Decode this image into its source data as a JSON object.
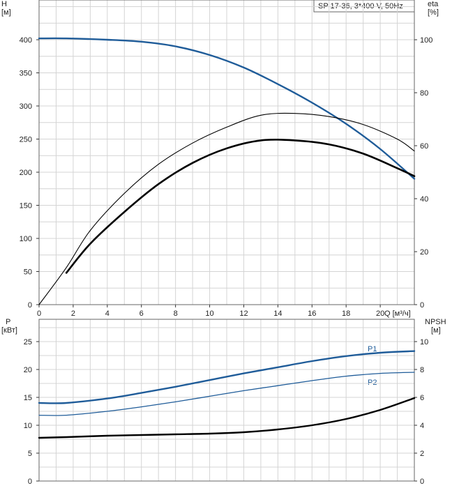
{
  "colors": {
    "head_curve": "#1f5c99",
    "eff_curve": "#000000",
    "power_curve": "#1f5c99",
    "npsh_curve": "#000000",
    "grid": "#d4d4d4"
  },
  "top_chart": {
    "legend_title": "SP 17-36, 3*400 V, 50Hz",
    "y_left_label_1": "H",
    "y_left_label_2": "[м]",
    "y_right_label_1": "eta",
    "y_right_label_2": "[%]",
    "x_label": "Q [м³/ч]",
    "x_ticks": [
      "0",
      "2",
      "4",
      "6",
      "8",
      "10",
      "12",
      "14",
      "16",
      "18",
      "20"
    ],
    "y_left_ticks": [
      "0",
      "50",
      "100",
      "150",
      "200",
      "250",
      "300",
      "350",
      "400"
    ],
    "y_right_ticks": [
      "0",
      "20",
      "40",
      "60",
      "80",
      "100"
    ]
  },
  "bottom_chart": {
    "y_left_label_1": "P",
    "y_left_label_2": "[кВт]",
    "y_right_label_1": "NPSH",
    "y_right_label_2": "[м]",
    "y_left_ticks": [
      "0",
      "5",
      "10",
      "15",
      "20",
      "25"
    ],
    "y_right_ticks": [
      "0",
      "2",
      "4",
      "6",
      "8",
      "10"
    ],
    "p1_label": "P1",
    "p2_label": "P2"
  },
  "chart_data": [
    {
      "type": "line",
      "x_unit": "Q [м³/ч]",
      "xlim": [
        0,
        22
      ],
      "ylim_left": [
        0,
        460
      ],
      "ylim_right": [
        0,
        115
      ],
      "grid": true,
      "legend_placement": "top-right",
      "series": [
        {
          "axis": "left",
          "x": [
            0,
            1.6,
            4,
            6,
            8,
            10,
            12,
            14,
            16,
            18,
            20,
            22
          ],
          "values": [
            402,
            402,
            400,
            397,
            390,
            377,
            358,
            333,
            305,
            273,
            235,
            190
          ]
        },
        {
          "axis": "right",
          "x": [
            0,
            1.6,
            3,
            5,
            7,
            9,
            11,
            13,
            15,
            17,
            19,
            21,
            22
          ],
          "values": [
            0,
            14,
            28,
            42,
            53,
            61,
            67,
            71.5,
            72.2,
            71,
            68,
            62.5,
            58
          ]
        },
        {
          "axis": "right",
          "x": [
            1.6,
            3,
            5,
            7,
            9,
            11,
            13,
            15,
            17,
            19,
            21,
            22
          ],
          "values": [
            12,
            23,
            35,
            45.5,
            53.5,
            59,
            62,
            62,
            60.5,
            57,
            51.5,
            48.5
          ]
        }
      ]
    },
    {
      "type": "line",
      "x_unit": "Q [м³/ч]",
      "xlim": [
        0,
        22
      ],
      "ylim_left": [
        0,
        29
      ],
      "ylim_right": [
        0,
        11.6
      ],
      "grid": true,
      "series": [
        {
          "name": "P1",
          "axis": "left",
          "x": [
            0,
            1.6,
            4,
            6,
            8,
            10,
            12,
            14,
            16,
            18,
            20,
            22
          ],
          "values": [
            14.0,
            14.0,
            14.8,
            15.8,
            16.9,
            18.1,
            19.3,
            20.4,
            21.5,
            22.4,
            23.0,
            23.3
          ]
        },
        {
          "name": "P2",
          "axis": "left",
          "x": [
            0,
            1.6,
            4,
            6,
            8,
            10,
            12,
            14,
            16,
            18,
            20,
            22
          ],
          "values": [
            11.8,
            11.8,
            12.5,
            13.3,
            14.2,
            15.2,
            16.2,
            17.1,
            18.0,
            18.8,
            19.3,
            19.5
          ]
        },
        {
          "axis": "right",
          "x": [
            0,
            1.6,
            4,
            6,
            8,
            10,
            12,
            14,
            16,
            18,
            20,
            22
          ],
          "values": [
            3.1,
            3.15,
            3.25,
            3.3,
            3.35,
            3.4,
            3.5,
            3.7,
            4.0,
            4.45,
            5.1,
            5.95
          ]
        }
      ]
    }
  ]
}
